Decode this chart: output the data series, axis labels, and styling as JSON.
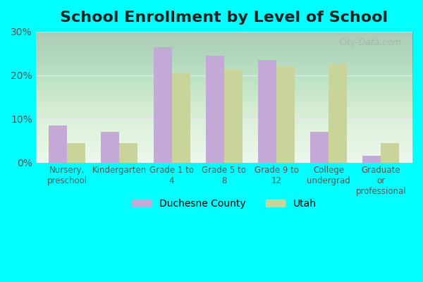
{
  "title": "School Enrollment by Level of School",
  "categories": [
    "Nursery,\npreschool",
    "Kindergarten",
    "Grade 1 to\n4",
    "Grade 5 to\n8",
    "Grade 9 to\n12",
    "College\nundergrad",
    "Graduate\nor\nprofessional"
  ],
  "duchesne": [
    8.5,
    7.0,
    26.5,
    24.5,
    23.5,
    7.0,
    1.5
  ],
  "utah": [
    4.5,
    4.5,
    20.5,
    21.5,
    22.0,
    22.5,
    4.5
  ],
  "duchesne_color": "#c4a8d8",
  "utah_color": "#c8d49a",
  "bg_outer": "#00ffff",
  "grid_color": "#f0e0f0",
  "ylim": [
    0,
    30
  ],
  "yticks": [
    0,
    10,
    20,
    30
  ],
  "ytick_labels": [
    "0%",
    "10%",
    "20%",
    "30%"
  ],
  "legend_duchesne": "Duchesne County",
  "legend_utah": "Utah",
  "bar_width": 0.35,
  "title_fontsize": 16,
  "watermark": "City-Data.com"
}
